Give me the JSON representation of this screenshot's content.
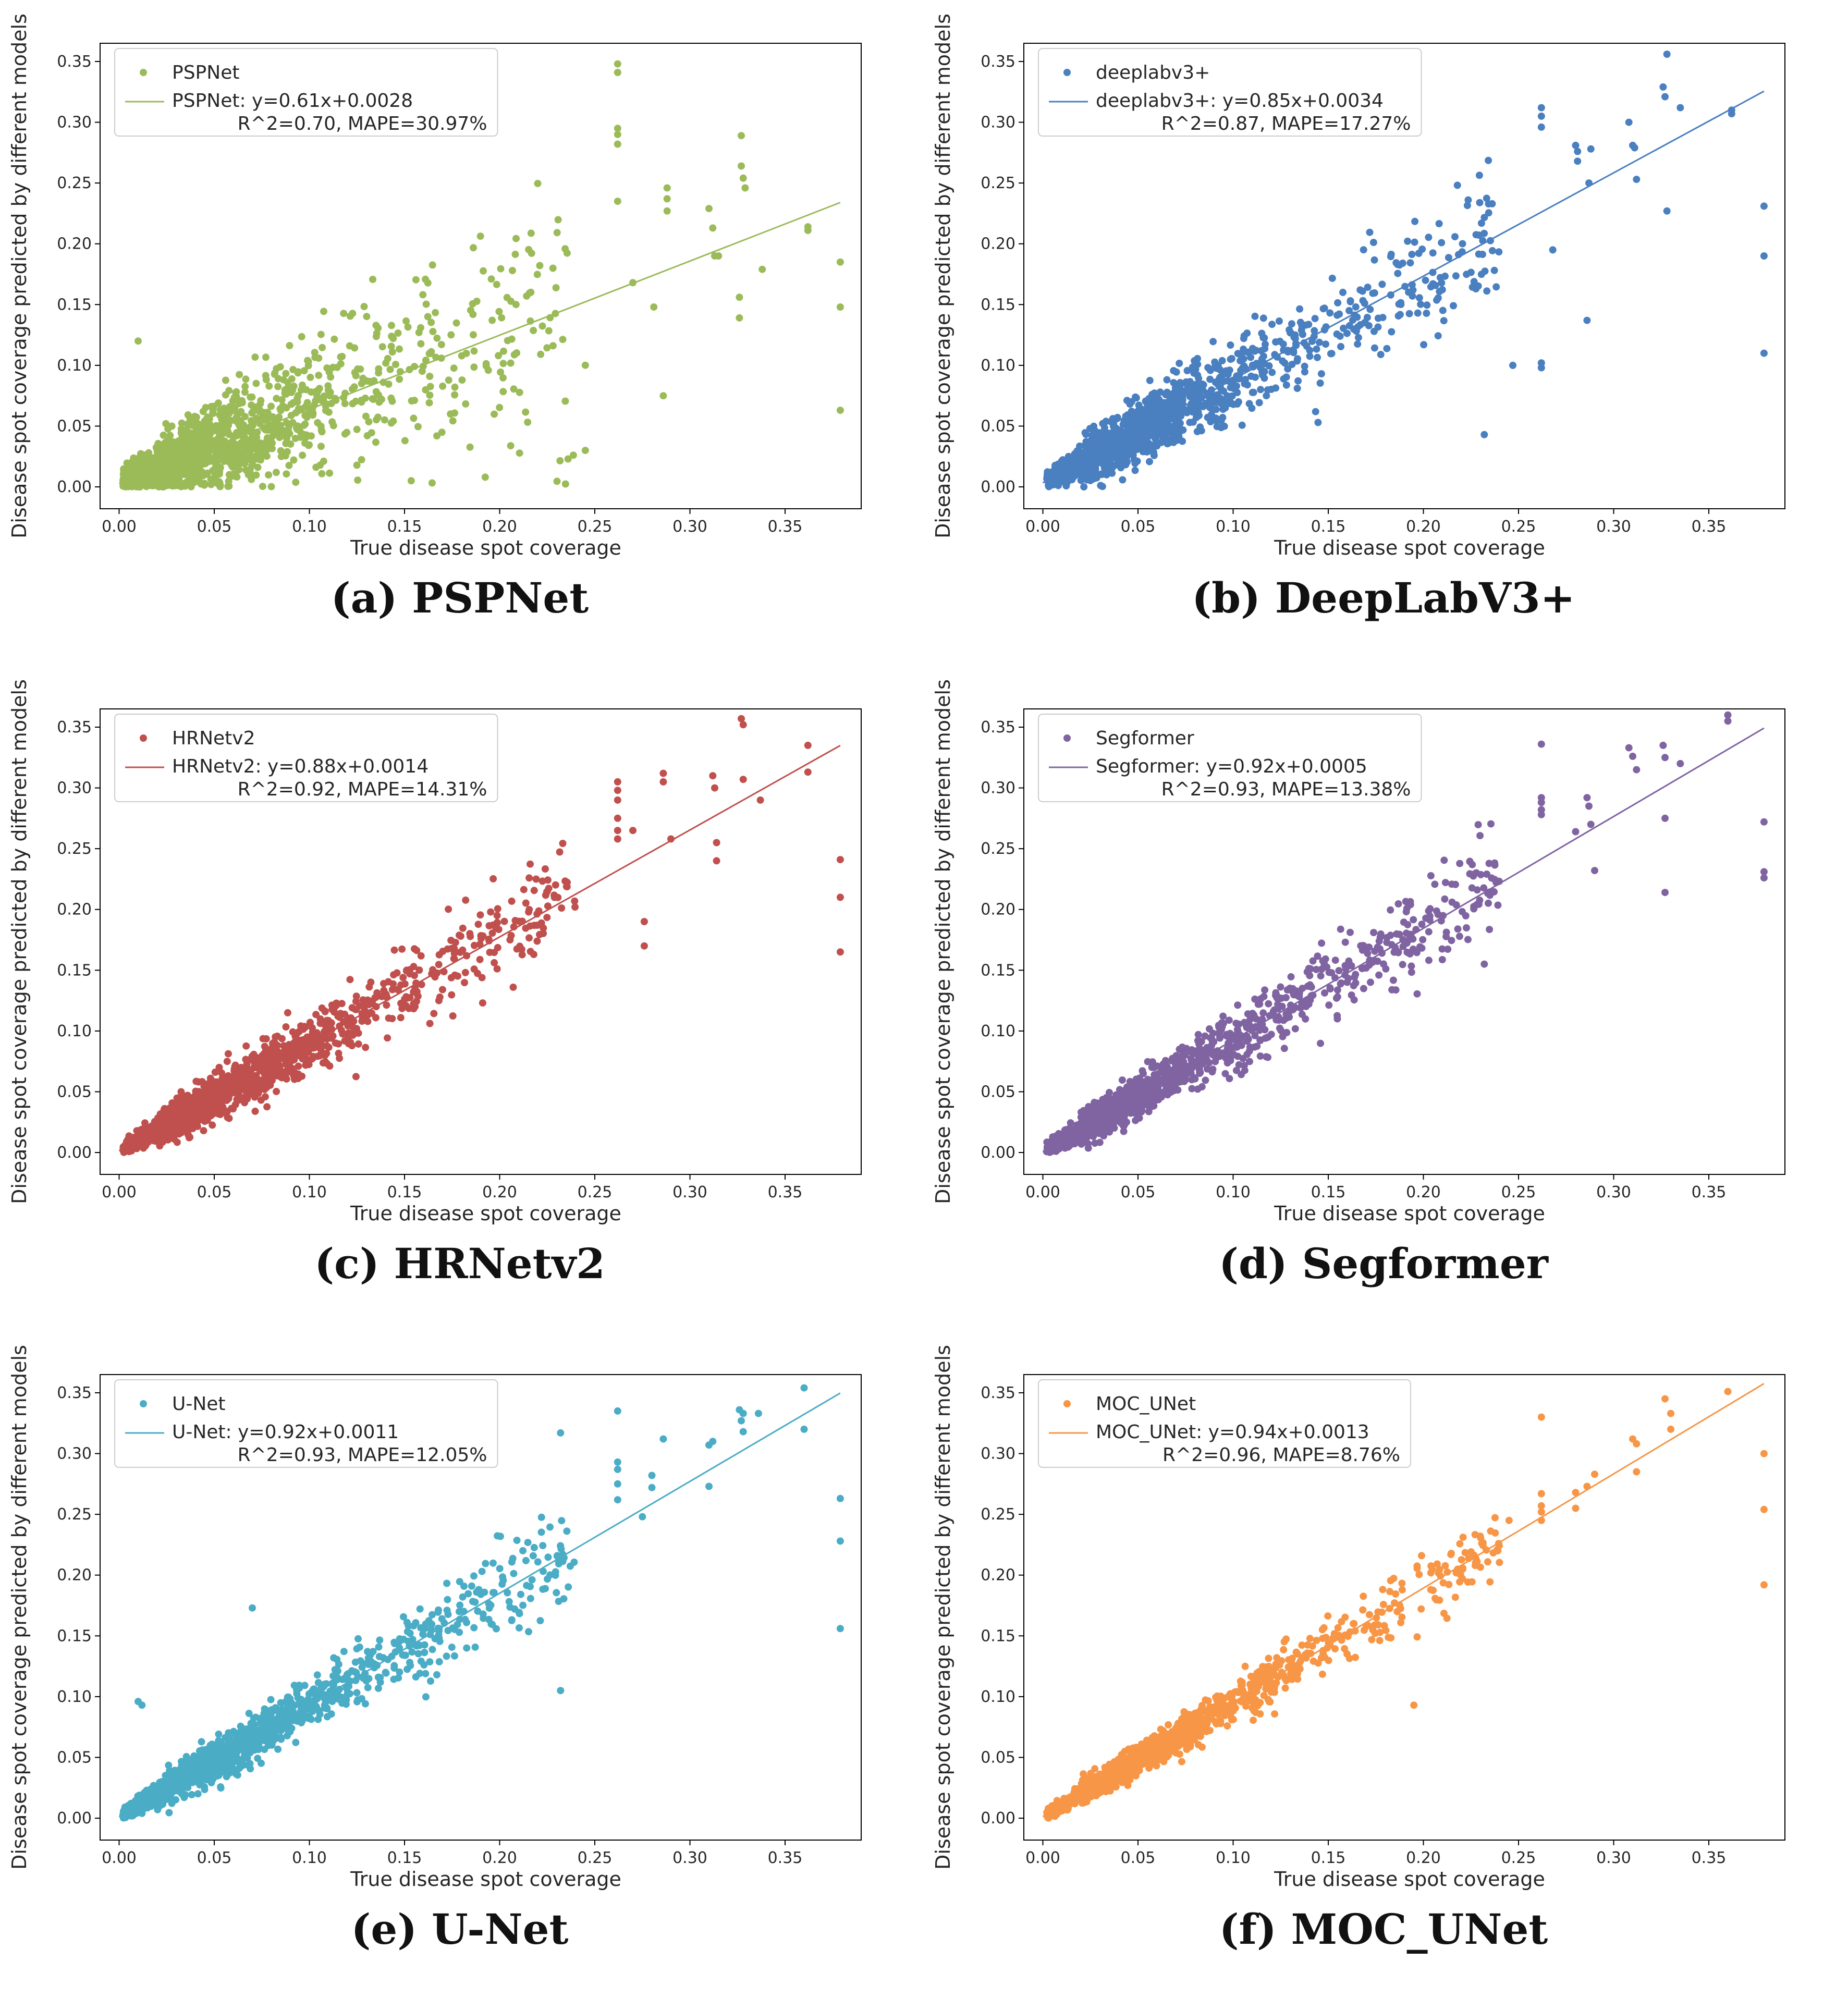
{
  "figure": {
    "xlabel": "True disease spot coverage",
    "ylabel": "Disease spot coverage predicted by different models",
    "xticks": [
      "0.00",
      "0.05",
      "0.10",
      "0.15",
      "0.20",
      "0.25",
      "0.30",
      "0.35"
    ],
    "yticks": [
      "0.00",
      "0.05",
      "0.10",
      "0.15",
      "0.20",
      "0.25",
      "0.30",
      "0.35"
    ]
  },
  "chart_data": [
    {
      "type": "scatter",
      "caption": "(a) PSPNet",
      "legend_scatter": "PSPNet",
      "legend_fit_line1": "PSPNet: y=0.61x+0.0028",
      "legend_fit_line2": "R^2=0.70, MAPE=30.97%",
      "color": "#9bbb59",
      "slope": 0.61,
      "intercept": 0.0028,
      "r2": 0.7,
      "mape": 30.97,
      "noise": 0.028,
      "xlabel": "True disease spot coverage",
      "ylabel": "Disease spot coverage predicted by different models",
      "xlim": [
        -0.01,
        0.39
      ],
      "ylim": [
        -0.018,
        0.365
      ],
      "extra_points": [
        [
          0.262,
          0.348
        ],
        [
          0.262,
          0.341
        ],
        [
          0.262,
          0.295
        ],
        [
          0.262,
          0.29
        ],
        [
          0.262,
          0.282
        ],
        [
          0.262,
          0.235
        ],
        [
          0.27,
          0.168
        ],
        [
          0.281,
          0.148
        ],
        [
          0.286,
          0.075
        ],
        [
          0.288,
          0.246
        ],
        [
          0.288,
          0.237
        ],
        [
          0.288,
          0.227
        ],
        [
          0.31,
          0.229
        ],
        [
          0.312,
          0.213
        ],
        [
          0.313,
          0.19
        ],
        [
          0.315,
          0.19
        ],
        [
          0.326,
          0.156
        ],
        [
          0.326,
          0.139
        ],
        [
          0.327,
          0.289
        ],
        [
          0.327,
          0.264
        ],
        [
          0.328,
          0.254
        ],
        [
          0.329,
          0.246
        ],
        [
          0.338,
          0.179
        ],
        [
          0.362,
          0.214
        ],
        [
          0.362,
          0.211
        ],
        [
          0.379,
          0.185
        ],
        [
          0.379,
          0.148
        ],
        [
          0.379,
          0.063
        ],
        [
          0.245,
          0.03
        ],
        [
          0.01,
          0.12
        ]
      ]
    },
    {
      "type": "scatter",
      "caption": "(b) DeepLabV3+",
      "legend_scatter": "deeplabv3+",
      "legend_fit_line1": "deeplabv3+: y=0.85x+0.0034",
      "legend_fit_line2": "R^2=0.87, MAPE=17.27%",
      "color": "#4a7fc0",
      "slope": 0.85,
      "intercept": 0.0034,
      "r2": 0.87,
      "mape": 17.27,
      "noise": 0.018,
      "xlabel": "True disease spot coverage",
      "ylabel": "Disease spot coverage predicted by different models",
      "xlim": [
        -0.01,
        0.39
      ],
      "ylim": [
        -0.018,
        0.365
      ],
      "extra_points": [
        [
          0.262,
          0.312
        ],
        [
          0.262,
          0.305
        ],
        [
          0.262,
          0.296
        ],
        [
          0.262,
          0.102
        ],
        [
          0.262,
          0.098
        ],
        [
          0.28,
          0.281
        ],
        [
          0.281,
          0.276
        ],
        [
          0.281,
          0.268
        ],
        [
          0.286,
          0.137
        ],
        [
          0.287,
          0.25
        ],
        [
          0.288,
          0.278
        ],
        [
          0.308,
          0.3
        ],
        [
          0.31,
          0.281
        ],
        [
          0.311,
          0.279
        ],
        [
          0.312,
          0.253
        ],
        [
          0.326,
          0.329
        ],
        [
          0.327,
          0.321
        ],
        [
          0.328,
          0.356
        ],
        [
          0.328,
          0.227
        ],
        [
          0.335,
          0.312
        ],
        [
          0.362,
          0.31
        ],
        [
          0.362,
          0.307
        ],
        [
          0.379,
          0.231
        ],
        [
          0.379,
          0.19
        ],
        [
          0.379,
          0.11
        ],
        [
          0.268,
          0.195
        ],
        [
          0.232,
          0.043
        ],
        [
          0.247,
          0.1
        ]
      ]
    },
    {
      "type": "scatter",
      "caption": "(c) HRNetv2",
      "legend_scatter": "HRNetv2",
      "legend_fit_line1": "HRNetv2: y=0.88x+0.0014",
      "legend_fit_line2": "R^2=0.92, MAPE=14.31%",
      "color": "#c0504d",
      "slope": 0.88,
      "intercept": 0.0014,
      "r2": 0.92,
      "mape": 14.31,
      "noise": 0.013,
      "xlabel": "True disease spot coverage",
      "ylabel": "Disease spot coverage predicted by different models",
      "xlim": [
        -0.01,
        0.39
      ],
      "ylim": [
        -0.018,
        0.365
      ],
      "extra_points": [
        [
          0.262,
          0.305
        ],
        [
          0.262,
          0.298
        ],
        [
          0.262,
          0.29
        ],
        [
          0.262,
          0.275
        ],
        [
          0.262,
          0.265
        ],
        [
          0.262,
          0.258
        ],
        [
          0.27,
          0.265
        ],
        [
          0.276,
          0.19
        ],
        [
          0.276,
          0.17
        ],
        [
          0.286,
          0.312
        ],
        [
          0.286,
          0.305
        ],
        [
          0.29,
          0.258
        ],
        [
          0.312,
          0.31
        ],
        [
          0.313,
          0.3
        ],
        [
          0.314,
          0.255
        ],
        [
          0.314,
          0.24
        ],
        [
          0.327,
          0.357
        ],
        [
          0.328,
          0.352
        ],
        [
          0.328,
          0.307
        ],
        [
          0.337,
          0.29
        ],
        [
          0.362,
          0.335
        ],
        [
          0.362,
          0.313
        ],
        [
          0.379,
          0.241
        ],
        [
          0.379,
          0.21
        ],
        [
          0.379,
          0.165
        ]
      ]
    },
    {
      "type": "scatter",
      "caption": "(d) Segformer",
      "legend_scatter": "Segformer",
      "legend_fit_line1": "Segformer: y=0.92x+0.0005",
      "legend_fit_line2": "R^2=0.93, MAPE=13.38%",
      "color": "#8064a2",
      "slope": 0.92,
      "intercept": 0.0005,
      "r2": 0.93,
      "mape": 13.38,
      "noise": 0.013,
      "xlabel": "True disease spot coverage",
      "ylabel": "Disease spot coverage predicted by different models",
      "xlim": [
        -0.01,
        0.39
      ],
      "ylim": [
        -0.018,
        0.365
      ],
      "extra_points": [
        [
          0.262,
          0.336
        ],
        [
          0.262,
          0.292
        ],
        [
          0.262,
          0.288
        ],
        [
          0.262,
          0.282
        ],
        [
          0.262,
          0.278
        ],
        [
          0.28,
          0.264
        ],
        [
          0.286,
          0.292
        ],
        [
          0.287,
          0.285
        ],
        [
          0.288,
          0.27
        ],
        [
          0.29,
          0.232
        ],
        [
          0.308,
          0.333
        ],
        [
          0.31,
          0.326
        ],
        [
          0.312,
          0.315
        ],
        [
          0.326,
          0.335
        ],
        [
          0.327,
          0.325
        ],
        [
          0.327,
          0.275
        ],
        [
          0.327,
          0.214
        ],
        [
          0.335,
          0.32
        ],
        [
          0.36,
          0.36
        ],
        [
          0.36,
          0.355
        ],
        [
          0.379,
          0.272
        ],
        [
          0.379,
          0.231
        ],
        [
          0.379,
          0.226
        ],
        [
          0.232,
          0.155
        ]
      ]
    },
    {
      "type": "scatter",
      "caption": "(e) U-Net",
      "legend_scatter": "U-Net",
      "legend_fit_line1": "U-Net: y=0.92x+0.0011",
      "legend_fit_line2": "R^2=0.93, MAPE=12.05%",
      "color": "#4bacc6",
      "slope": 0.92,
      "intercept": 0.0011,
      "r2": 0.93,
      "mape": 12.05,
      "noise": 0.012,
      "xlabel": "True disease spot coverage",
      "ylabel": "Disease spot coverage predicted by different models",
      "xlim": [
        -0.01,
        0.39
      ],
      "ylim": [
        -0.018,
        0.365
      ],
      "extra_points": [
        [
          0.232,
          0.317
        ],
        [
          0.232,
          0.105
        ],
        [
          0.262,
          0.335
        ],
        [
          0.262,
          0.293
        ],
        [
          0.262,
          0.287
        ],
        [
          0.262,
          0.275
        ],
        [
          0.262,
          0.262
        ],
        [
          0.275,
          0.248
        ],
        [
          0.28,
          0.282
        ],
        [
          0.28,
          0.272
        ],
        [
          0.286,
          0.312
        ],
        [
          0.31,
          0.307
        ],
        [
          0.31,
          0.273
        ],
        [
          0.312,
          0.31
        ],
        [
          0.326,
          0.336
        ],
        [
          0.328,
          0.333
        ],
        [
          0.327,
          0.327
        ],
        [
          0.328,
          0.318
        ],
        [
          0.336,
          0.333
        ],
        [
          0.36,
          0.354
        ],
        [
          0.36,
          0.32
        ],
        [
          0.379,
          0.263
        ],
        [
          0.379,
          0.228
        ],
        [
          0.379,
          0.156
        ],
        [
          0.07,
          0.173
        ],
        [
          0.01,
          0.096
        ],
        [
          0.012,
          0.093
        ]
      ]
    },
    {
      "type": "scatter",
      "caption": "(f) MOC_UNet",
      "legend_scatter": "MOC_UNet",
      "legend_fit_line1": "MOC_UNet: y=0.94x+0.0013",
      "legend_fit_line2": "R^2=0.96, MAPE=8.76%",
      "color": "#f79646",
      "slope": 0.94,
      "intercept": 0.0013,
      "r2": 0.96,
      "mape": 8.76,
      "noise": 0.009,
      "xlabel": "True disease spot coverage",
      "ylabel": "Disease spot coverage predicted by different models",
      "xlim": [
        -0.01,
        0.39
      ],
      "ylim": [
        -0.018,
        0.365
      ],
      "extra_points": [
        [
          0.262,
          0.33
        ],
        [
          0.262,
          0.267
        ],
        [
          0.262,
          0.257
        ],
        [
          0.262,
          0.252
        ],
        [
          0.262,
          0.245
        ],
        [
          0.28,
          0.268
        ],
        [
          0.28,
          0.255
        ],
        [
          0.286,
          0.273
        ],
        [
          0.29,
          0.283
        ],
        [
          0.31,
          0.312
        ],
        [
          0.312,
          0.308
        ],
        [
          0.312,
          0.285
        ],
        [
          0.327,
          0.345
        ],
        [
          0.33,
          0.333
        ],
        [
          0.33,
          0.32
        ],
        [
          0.36,
          0.351
        ],
        [
          0.379,
          0.3
        ],
        [
          0.379,
          0.254
        ],
        [
          0.379,
          0.192
        ],
        [
          0.195,
          0.093
        ],
        [
          0.245,
          0.245
        ]
      ]
    }
  ]
}
